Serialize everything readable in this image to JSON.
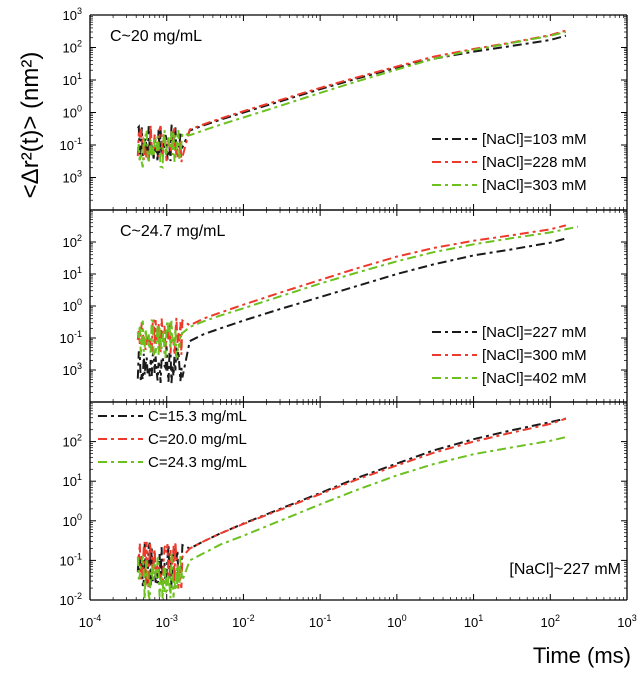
{
  "figure": {
    "ylabel": "<Δr²(t)> (nm²)",
    "xlabel": "Time (ms)",
    "colors": {
      "black": "#1a1a1a",
      "red": "#ee3a2c",
      "green": "#6cc11f"
    }
  },
  "chart_data": [
    {
      "type": "line",
      "panel": "top",
      "annotation": "C~20 mg/mL",
      "x_scale": "log",
      "y_scale": "log",
      "xlim": [
        0.0001,
        1000
      ],
      "ylim": [
        0.001,
        1000
      ],
      "x_ticks": [
        "10-4",
        "10-3",
        "10-2",
        "10-1",
        "100",
        "101",
        "102",
        "103"
      ],
      "y_ticks": [
        "103",
        "102",
        "101",
        "100",
        "10-1",
        "103"
      ],
      "legend": "right",
      "series": [
        {
          "name": "[NaCl]=103 mM",
          "color": "#1a1a1a",
          "x": [
            0.00045,
            0.001,
            0.002,
            0.003,
            0.005,
            0.01,
            0.03,
            0.1,
            0.3,
            1,
            3,
            10,
            30,
            100,
            160
          ],
          "y": [
            0.15,
            0.18,
            0.28,
            0.4,
            0.6,
            1.0,
            2.2,
            5.2,
            11,
            24,
            45,
            75,
            110,
            170,
            230
          ]
        },
        {
          "name": "[NaCl]=228 mM",
          "color": "#ee3a2c",
          "x": [
            0.00045,
            0.001,
            0.002,
            0.003,
            0.005,
            0.01,
            0.03,
            0.1,
            0.3,
            1,
            3,
            10,
            30,
            100,
            160
          ],
          "y": [
            0.15,
            0.2,
            0.3,
            0.43,
            0.65,
            1.1,
            2.4,
            5.7,
            12,
            26,
            52,
            90,
            140,
            240,
            330
          ]
        },
        {
          "name": "[NaCl]=303 mM",
          "color": "#6cc11f",
          "x": [
            0.00045,
            0.001,
            0.002,
            0.003,
            0.005,
            0.01,
            0.03,
            0.1,
            0.3,
            1,
            3,
            10,
            30,
            100,
            160
          ],
          "y": [
            0.1,
            0.13,
            0.2,
            0.28,
            0.42,
            0.7,
            1.6,
            4.0,
            9,
            21,
            45,
            85,
            135,
            230,
            300
          ]
        }
      ]
    },
    {
      "type": "line",
      "panel": "middle",
      "annotation": "C~24.7 mg/mL",
      "x_scale": "log",
      "y_scale": "log",
      "xlim": [
        0.0001,
        1000
      ],
      "ylim": [
        0.001,
        1000
      ],
      "y_ticks": [
        "102",
        "101",
        "100",
        "10-1",
        "103"
      ],
      "legend": "right",
      "series": [
        {
          "name": "[NaCl]=227 mM",
          "color": "#1a1a1a",
          "x": [
            0.00045,
            0.001,
            0.002,
            0.003,
            0.005,
            0.01,
            0.03,
            0.1,
            0.3,
            1,
            3,
            10,
            30,
            100,
            160
          ],
          "y": [
            0.02,
            0.03,
            0.08,
            0.13,
            0.2,
            0.35,
            0.8,
            1.9,
            4.2,
            10,
            20,
            38,
            58,
            95,
            130
          ]
        },
        {
          "name": "[NaCl]=300 mM",
          "color": "#ee3a2c",
          "x": [
            0.00045,
            0.001,
            0.002,
            0.003,
            0.005,
            0.01,
            0.03,
            0.1,
            0.3,
            1,
            3,
            10,
            30,
            100,
            160
          ],
          "y": [
            0.15,
            0.18,
            0.25,
            0.4,
            0.62,
            1.1,
            2.6,
            6.5,
            15,
            35,
            65,
            110,
            160,
            250,
            330
          ]
        },
        {
          "name": "[NaCl]=402 mM",
          "color": "#6cc11f",
          "x": [
            0.00045,
            0.001,
            0.002,
            0.003,
            0.005,
            0.01,
            0.03,
            0.1,
            0.3,
            1,
            3,
            10,
            30,
            100,
            230
          ],
          "y": [
            0.12,
            0.15,
            0.22,
            0.33,
            0.5,
            0.85,
            2.0,
            5.0,
            11,
            25,
            48,
            85,
            130,
            200,
            300
          ]
        }
      ]
    },
    {
      "type": "line",
      "panel": "bottom",
      "annotation": "[NaCl]~227 mM",
      "x_scale": "log",
      "y_scale": "log",
      "xlim": [
        0.0001,
        1000
      ],
      "ylim": [
        0.01,
        1000
      ],
      "y_ticks": [
        "102",
        "101",
        "100",
        "10-1",
        "10-2"
      ],
      "legend": "top-left",
      "series": [
        {
          "name": "C=15.3 mg/mL",
          "color": "#1a1a1a",
          "x": [
            0.00045,
            0.001,
            0.002,
            0.003,
            0.005,
            0.01,
            0.03,
            0.1,
            0.3,
            1,
            3,
            10,
            30,
            100,
            160
          ],
          "y": [
            0.1,
            0.13,
            0.2,
            0.3,
            0.48,
            0.85,
            2.0,
            5.0,
            12,
            28,
            60,
            115,
            190,
            310,
            380
          ]
        },
        {
          "name": "C=20.0 mg/mL",
          "color": "#ee3a2c",
          "x": [
            0.00045,
            0.001,
            0.002,
            0.003,
            0.005,
            0.01,
            0.03,
            0.1,
            0.3,
            1,
            3,
            10,
            30,
            100,
            160
          ],
          "y": [
            0.1,
            0.13,
            0.2,
            0.3,
            0.48,
            0.83,
            1.9,
            4.7,
            11,
            25,
            52,
            100,
            165,
            280,
            380
          ]
        },
        {
          "name": "C=24.3 mg/mL",
          "color": "#6cc11f",
          "x": [
            0.00045,
            0.001,
            0.002,
            0.003,
            0.005,
            0.01,
            0.03,
            0.1,
            0.3,
            1,
            3,
            10,
            30,
            100,
            160
          ],
          "y": [
            0.05,
            0.07,
            0.1,
            0.15,
            0.25,
            0.42,
            1.0,
            2.6,
            6.0,
            14,
            27,
            48,
            70,
            105,
            130
          ]
        }
      ]
    }
  ]
}
